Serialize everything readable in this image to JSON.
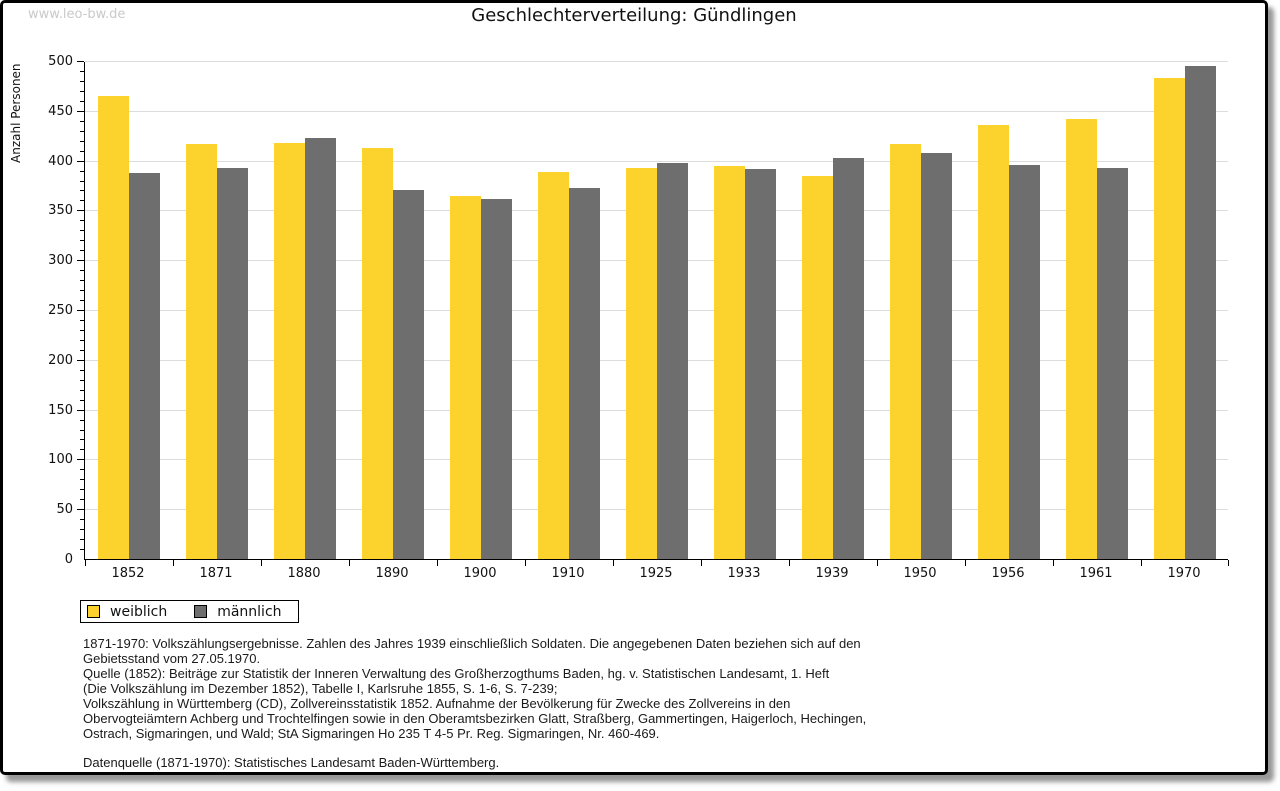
{
  "window": {
    "watermark": "www.leo-bw.de"
  },
  "title": "Geschlechterverteilung: Gündlingen",
  "colors": {
    "female": "#fcd32d",
    "male": "#6e6e6e",
    "gridline": "#dcdcdc",
    "axis": "#000000",
    "watermark": "#c9c9c9"
  },
  "chart_data": {
    "type": "bar",
    "title": "Geschlechterverteilung: Gündlingen",
    "categories": [
      "1852",
      "1871",
      "1880",
      "1890",
      "1900",
      "1910",
      "1925",
      "1933",
      "1939",
      "1950",
      "1956",
      "1961",
      "1970"
    ],
    "series": [
      {
        "name": "weiblich",
        "color": "#fcd32d",
        "values": [
          465,
          417,
          418,
          413,
          364,
          389,
          393,
          395,
          385,
          417,
          436,
          442,
          483
        ]
      },
      {
        "name": "männlich",
        "color": "#6e6e6e",
        "values": [
          388,
          393,
          423,
          370,
          361,
          373,
          398,
          392,
          403,
          408,
          396,
          393,
          495
        ]
      }
    ],
    "xlabel": "",
    "ylabel": "Anzahl Personen",
    "ylim": [
      0,
      500
    ],
    "ytick_step": 50,
    "ytick_minor_step": 10,
    "grid": true,
    "legend_position": "bottom-left"
  },
  "legend": {
    "items": [
      {
        "label": "weiblich",
        "color": "#fcd32d"
      },
      {
        "label": "männlich",
        "color": "#6e6e6e"
      }
    ]
  },
  "footer": {
    "lines": [
      "1871-1970: Volkszählungsergebnisse. Zahlen des Jahres 1939 einschließlich Soldaten. Die angegebenen Daten beziehen sich auf den",
      "Gebietsstand vom 27.05.1970.",
      "Quelle (1852): Beiträge zur Statistik der Inneren Verwaltung des Großherzogthums Baden, hg. v. Statistischen Landesamt, 1. Heft",
      "(Die Volkszählung im Dezember 1852), Tabelle I, Karlsruhe 1855, S. 1-6, S. 7-239;",
      "Volkszählung in Württemberg (CD), Zollvereinsstatistik 1852. Aufnahme der Bevölkerung für Zwecke des Zollvereins in den",
      "Obervogteiämtern Achberg und Trochtelfingen sowie in den Oberamtsbezirken Glatt, Straßberg, Gammertingen, Haigerloch, Hechingen,",
      "Ostrach, Sigmaringen, und Wald; StA Sigmaringen Ho 235 T 4-5 Pr. Reg. Sigmaringen, Nr. 460-469."
    ],
    "datasource": "Datenquelle (1871-1970): Statistisches Landesamt Baden-Württemberg."
  }
}
